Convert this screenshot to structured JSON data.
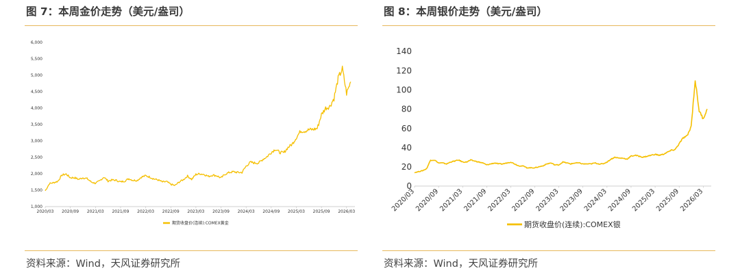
{
  "figures": [
    {
      "title": "图 7：本周金价走势（美元/盎司）",
      "source": "资料来源：Wind，天风证券研究所",
      "line_color": "#f5bf00",
      "chart_data": {
        "type": "line",
        "title": "",
        "xlabel": "",
        "ylabel": "",
        "ylim": [
          1000,
          6000
        ],
        "yticks": [
          1000,
          1500,
          2000,
          2500,
          3000,
          3500,
          4000,
          4500,
          5000,
          5500,
          6000
        ],
        "ytick_labels": [
          "1,000",
          "1,500",
          "2,000",
          "2,500",
          "3,000",
          "3,500",
          "4,000",
          "4,500",
          "5,000",
          "5,500",
          "6,000"
        ],
        "xlim": [
          "2020-03",
          "2026-05"
        ],
        "xticks": [
          "2020-03",
          "2020-09",
          "2021-03",
          "2021-09",
          "2022-03",
          "2022-09",
          "2023-03",
          "2023-09",
          "2024-03",
          "2024-09",
          "2025-03",
          "2025-09",
          "2026-03"
        ],
        "xtick_labels": [
          "2020/03",
          "2020/09",
          "2021/03",
          "2021/09",
          "2022/03",
          "2022/09",
          "2023/03",
          "2023/09",
          "2024/03",
          "2024/09",
          "2025/03",
          "2025/09",
          "2026/03"
        ],
        "grid": false,
        "legend_position": "bottom",
        "series": [
          {
            "name": "期货收盘价(连续):COMEX黄金",
            "x": [
              "2020-03",
              "2020-04",
              "2020-05",
              "2020-06",
              "2020-07",
              "2020-08",
              "2020-09",
              "2020-10",
              "2020-11",
              "2020-12",
              "2021-01",
              "2021-02",
              "2021-03",
              "2021-04",
              "2021-05",
              "2021-06",
              "2021-07",
              "2021-08",
              "2021-09",
              "2021-10",
              "2021-11",
              "2021-12",
              "2022-01",
              "2022-02",
              "2022-03",
              "2022-04",
              "2022-05",
              "2022-06",
              "2022-07",
              "2022-08",
              "2022-09",
              "2022-10",
              "2022-11",
              "2022-12",
              "2023-01",
              "2023-02",
              "2023-03",
              "2023-04",
              "2023-05",
              "2023-06",
              "2023-07",
              "2023-08",
              "2023-09",
              "2023-10",
              "2023-11",
              "2023-12",
              "2024-01",
              "2024-02",
              "2024-03",
              "2024-04",
              "2024-05",
              "2024-06",
              "2024-07",
              "2024-08",
              "2024-09",
              "2024-10",
              "2024-11",
              "2024-12",
              "2025-01",
              "2025-02",
              "2025-03",
              "2025-04",
              "2025-05",
              "2025-06",
              "2025-07",
              "2025-08",
              "2025-09",
              "2025-10",
              "2025-11",
              "2025-12",
              "2026-01",
              "2026-02",
              "2026-03",
              "2026-04"
            ],
            "values": [
              1480,
              1700,
              1730,
              1770,
              1960,
              1990,
              1880,
              1880,
              1830,
              1880,
              1850,
              1750,
              1710,
              1780,
              1900,
              1780,
              1810,
              1800,
              1750,
              1780,
              1850,
              1800,
              1800,
              1900,
              1940,
              1900,
              1840,
              1810,
              1750,
              1760,
              1680,
              1640,
              1750,
              1820,
              1930,
              1830,
              1980,
              2000,
              1980,
              1920,
              1960,
              1940,
              1870,
              1990,
              2040,
              2060,
              2040,
              2040,
              2230,
              2350,
              2330,
              2330,
              2440,
              2520,
              2650,
              2750,
              2650,
              2640,
              2800,
              2900,
              3100,
              3300,
              3300,
              3340,
              3350,
              3380,
              3800,
              4000,
              4050,
              4300,
              4900,
              5200,
              4450,
              4800
            ]
          }
        ]
      }
    },
    {
      "title": "图 8：本周银价走势（美元/盎司）",
      "source": "资料来源：Wind，天风证券研究所",
      "line_color": "#f5bf00",
      "chart_data": {
        "type": "line",
        "title": "",
        "xlabel": "",
        "ylabel": "",
        "ylim": [
          0,
          140
        ],
        "yticks": [
          0,
          20,
          40,
          60,
          80,
          100,
          120,
          140
        ],
        "ytick_labels": [
          "0",
          "20",
          "40",
          "60",
          "80",
          "100",
          "120",
          "140"
        ],
        "xlim": [
          "2020-03",
          "2026-05"
        ],
        "xticks": [
          "2020-03",
          "2020-09",
          "2021-03",
          "2021-09",
          "2022-03",
          "2022-09",
          "2023-03",
          "2023-09",
          "2024-03",
          "2024-09",
          "2025-03",
          "2025-09",
          "2026-03"
        ],
        "xtick_labels": [
          "2020/03",
          "2020/09",
          "2021/03",
          "2021/09",
          "2022/03",
          "2022/09",
          "2023/03",
          "2023/09",
          "2024/03",
          "2024/09",
          "2025/03",
          "2025/09",
          "2026/03"
        ],
        "grid": false,
        "legend_position": "bottom",
        "series": [
          {
            "name": "期货收盘价(连续):COMEX银",
            "x": [
              "2020-03",
              "2020-04",
              "2020-05",
              "2020-06",
              "2020-07",
              "2020-08",
              "2020-09",
              "2020-10",
              "2020-11",
              "2020-12",
              "2021-01",
              "2021-02",
              "2021-03",
              "2021-04",
              "2021-05",
              "2021-06",
              "2021-07",
              "2021-08",
              "2021-09",
              "2021-10",
              "2021-11",
              "2021-12",
              "2022-01",
              "2022-02",
              "2022-03",
              "2022-04",
              "2022-05",
              "2022-06",
              "2022-07",
              "2022-08",
              "2022-09",
              "2022-10",
              "2022-11",
              "2022-12",
              "2023-01",
              "2023-02",
              "2023-03",
              "2023-04",
              "2023-05",
              "2023-06",
              "2023-07",
              "2023-08",
              "2023-09",
              "2023-10",
              "2023-11",
              "2023-12",
              "2024-01",
              "2024-02",
              "2024-03",
              "2024-04",
              "2024-05",
              "2024-06",
              "2024-07",
              "2024-08",
              "2024-09",
              "2024-10",
              "2024-11",
              "2024-12",
              "2025-01",
              "2025-02",
              "2025-03",
              "2025-04",
              "2025-05",
              "2025-06",
              "2025-07",
              "2025-08",
              "2025-09",
              "2025-10",
              "2025-11",
              "2025-12",
              "2026-01",
              "2026-02",
              "2026-03",
              "2026-04"
            ],
            "values": [
              14,
              15,
              16,
              18,
              27,
              27,
              24,
              24,
              23,
              25,
              26,
              27,
              25,
              25,
              27,
              26,
              25,
              24,
              22,
              23,
              24,
              23,
              23,
              24,
              25,
              23,
              21,
              21,
              19,
              19,
              19,
              20,
              21,
              23,
              24,
              22,
              22,
              25,
              24,
              23,
              24,
              24,
              23,
              23,
              23,
              24,
              23,
              23,
              25,
              28,
              30,
              29,
              29,
              28,
              31,
              32,
              31,
              30,
              31,
              32,
              33,
              32,
              33,
              35,
              37,
              38,
              44,
              50,
              52,
              62,
              110,
              78,
              70,
              80
            ]
          }
        ]
      }
    }
  ]
}
